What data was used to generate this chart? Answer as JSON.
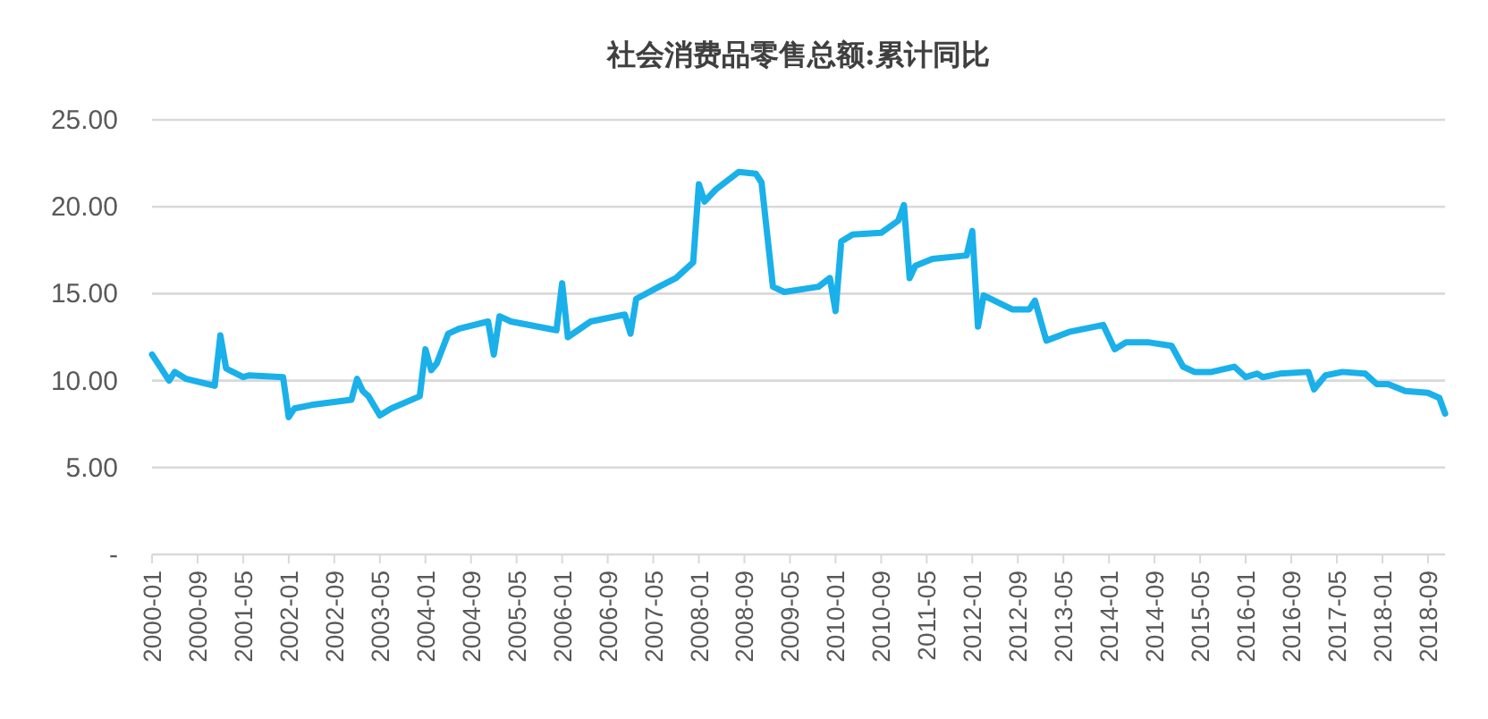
{
  "chart_data": {
    "type": "line",
    "title": "社会消费品零售总额:累计同比",
    "x": [
      "2000-01",
      "2000-04",
      "2000-05",
      "2000-07",
      "2000-12",
      "2001-01",
      "2001-02",
      "2001-05",
      "2001-06",
      "2001-12",
      "2002-01",
      "2002-02",
      "2002-05",
      "2002-12",
      "2003-01",
      "2003-02",
      "2003-03",
      "2003-05",
      "2003-07",
      "2003-12",
      "2004-01",
      "2004-02",
      "2004-03",
      "2004-05",
      "2004-07",
      "2004-12",
      "2005-01",
      "2005-02",
      "2005-04",
      "2005-12",
      "2006-01",
      "2006-02",
      "2006-06",
      "2006-12",
      "2007-01",
      "2007-02",
      "2007-06",
      "2007-09",
      "2007-12",
      "2008-01",
      "2008-02",
      "2008-04",
      "2008-08",
      "2008-11",
      "2008-12",
      "2009-02",
      "2009-04",
      "2009-10",
      "2009-12",
      "2010-01",
      "2010-02",
      "2010-04",
      "2010-09",
      "2010-12",
      "2011-01",
      "2011-02",
      "2011-03",
      "2011-06",
      "2011-12",
      "2012-01",
      "2012-02",
      "2012-03",
      "2012-08",
      "2012-11",
      "2012-12",
      "2013-02",
      "2013-06",
      "2013-12",
      "2014-02",
      "2014-04",
      "2014-08",
      "2014-12",
      "2015-02",
      "2015-04",
      "2015-07",
      "2015-11",
      "2016-01",
      "2016-03",
      "2016-04",
      "2016-07",
      "2016-12",
      "2017-01",
      "2017-03",
      "2017-06",
      "2017-10",
      "2017-12",
      "2018-02",
      "2018-05",
      "2018-09",
      "2018-11",
      "2018-12"
    ],
    "series": [
      {
        "color": "#1ab0ea",
        "values": [
          11.5,
          10.0,
          10.5,
          10.1,
          9.7,
          12.6,
          10.7,
          10.2,
          10.3,
          10.2,
          7.9,
          8.4,
          8.6,
          8.9,
          10.1,
          9.4,
          9.1,
          8.0,
          8.4,
          9.1,
          11.8,
          10.6,
          11.0,
          12.7,
          13.0,
          13.4,
          11.5,
          13.7,
          13.4,
          12.9,
          15.6,
          12.5,
          13.4,
          13.8,
          12.7,
          14.7,
          15.4,
          15.9,
          16.8,
          21.3,
          20.3,
          21.0,
          22.0,
          21.9,
          21.4,
          15.4,
          15.1,
          15.4,
          15.9,
          14.0,
          18.0,
          18.4,
          18.5,
          19.2,
          20.1,
          15.9,
          16.6,
          17.0,
          17.2,
          18.6,
          13.1,
          14.9,
          14.1,
          14.1,
          14.6,
          12.3,
          12.8,
          13.2,
          11.8,
          12.2,
          12.2,
          12.0,
          10.8,
          10.5,
          10.5,
          10.8,
          10.2,
          10.4,
          10.2,
          10.4,
          10.5,
          9.5,
          10.3,
          10.5,
          10.4,
          9.8,
          9.8,
          9.4,
          9.3,
          9.0,
          8.1
        ]
      }
    ],
    "xlim": [
      "2000-01",
      "2018-12"
    ],
    "xticks": [
      "2000-01",
      "2000-09",
      "2001-05",
      "2002-01",
      "2002-09",
      "2003-05",
      "2004-01",
      "2004-09",
      "2005-05",
      "2006-01",
      "2006-09",
      "2007-05",
      "2008-01",
      "2008-09",
      "2009-05",
      "2010-01",
      "2010-09",
      "2011-05",
      "2012-01",
      "2012-09",
      "2013-05",
      "2014-01",
      "2014-09",
      "2015-05",
      "2016-01",
      "2016-09",
      "2017-05",
      "2018-01",
      "2018-09"
    ],
    "ylim": [
      0,
      25
    ],
    "yticks": [
      {
        "value": 0,
        "label": "-"
      },
      {
        "value": 5,
        "label": "5.00"
      },
      {
        "value": 10,
        "label": "10.00"
      },
      {
        "value": 15,
        "label": "15.00"
      },
      {
        "value": 20,
        "label": "20.00"
      },
      {
        "value": 25,
        "label": "25.00"
      }
    ],
    "grid": "y",
    "line_style": "solid"
  }
}
